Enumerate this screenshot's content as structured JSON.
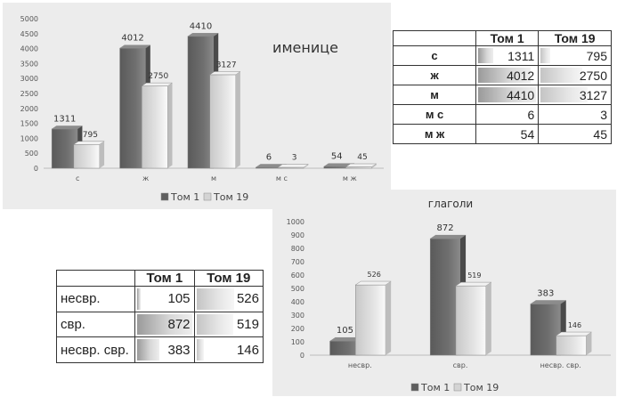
{
  "chart_data": [
    {
      "type": "bar",
      "title": "именице",
      "categories": [
        "с",
        "ж",
        "м",
        "м с",
        "м ж"
      ],
      "series": [
        {
          "name": "Том 1",
          "values": [
            1311,
            4012,
            4410,
            6,
            54
          ]
        },
        {
          "name": "Том 19",
          "values": [
            795,
            2750,
            3127,
            3,
            45
          ]
        }
      ],
      "ylim": [
        0,
        5000
      ],
      "yticks": [
        0,
        500,
        1000,
        1500,
        2000,
        2500,
        3000,
        3500,
        4000,
        4500,
        5000
      ],
      "legend": "bottom",
      "grid": false,
      "colors": {
        "Том 1": "#6f6f6f",
        "Том 19": "#e4e4e4"
      }
    },
    {
      "type": "bar",
      "title": "глаголи",
      "categories": [
        "несвр.",
        "свр.",
        "несвр. свр."
      ],
      "series": [
        {
          "name": "Том 1",
          "values": [
            105,
            872,
            383
          ]
        },
        {
          "name": "Том 19",
          "values": [
            526,
            519,
            146
          ]
        }
      ],
      "ylim": [
        0,
        1000
      ],
      "yticks": [
        0,
        100,
        200,
        300,
        400,
        500,
        600,
        700,
        800,
        900,
        1000
      ],
      "legend": "bottom",
      "grid": false,
      "colors": {
        "Том 1": "#6f6f6f",
        "Том 19": "#e4e4e4"
      }
    }
  ],
  "nouns_table": {
    "headers": [
      "",
      "Том 1",
      "Том 19"
    ],
    "rows": [
      {
        "label": "с",
        "v1": 1311,
        "v2": 795
      },
      {
        "label": "ж",
        "v1": 4012,
        "v2": 2750
      },
      {
        "label": "м",
        "v1": 4410,
        "v2": 3127
      },
      {
        "label": "м с",
        "v1": 6,
        "v2": 3
      },
      {
        "label": "м ж",
        "v1": 54,
        "v2": 45
      }
    ]
  },
  "verbs_table": {
    "headers": [
      "",
      "Том 1",
      "Том 19"
    ],
    "rows": [
      {
        "label": "несвр.",
        "v1": 105,
        "v2": 526
      },
      {
        "label": "свр.",
        "v1": 872,
        "v2": 519
      },
      {
        "label": "несвр. свр.",
        "v1": 383,
        "v2": 146
      }
    ]
  }
}
